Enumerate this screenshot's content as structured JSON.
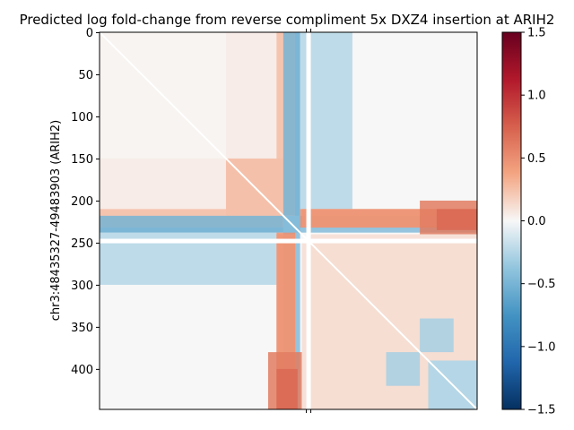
{
  "chart_data": {
    "type": "heatmap",
    "title": "Predicted log fold-change from reverse compliment 5x DXZ4 insertion at ARIH2",
    "xlabel": "",
    "ylabel": "chr3:48435327-49483903 (ARIH2)",
    "grid": false,
    "matrix_size": 448,
    "insertion_bin": 248,
    "y_ticks": [
      0,
      50,
      100,
      150,
      200,
      250,
      300,
      350,
      400
    ],
    "x_ticks": [
      248
    ],
    "colorbar": {
      "colormap": "RdBu_r",
      "vmin": -1.5,
      "vmax": 1.5,
      "ticks": [
        1.5,
        1.0,
        0.5,
        0.0,
        -0.5,
        -1.0,
        -1.5
      ],
      "tick_labels": [
        "1.5",
        "1.0",
        "0.5",
        "0.0",
        "−0.5",
        "−1.0",
        "−1.5"
      ]
    },
    "regions": [
      {
        "rows": [
          0,
          448
        ],
        "cols": [
          218,
          238
        ],
        "value": -0.45
      },
      {
        "rows": [
          0,
          210
        ],
        "cols": [
          150,
          218
        ],
        "value": 0.15
      },
      {
        "rows": [
          150,
          232
        ],
        "cols": [
          0,
          218
        ],
        "value": 0.25
      },
      {
        "rows": [
          218,
          238
        ],
        "cols": [
          0,
          218
        ],
        "value": -0.5
      },
      {
        "rows": [
          238,
          300
        ],
        "cols": [
          0,
          210
        ],
        "value": -0.25
      },
      {
        "rows": [
          210,
          232
        ],
        "cols": [
          238,
          448
        ],
        "value": 0.5
      },
      {
        "rows": [
          240,
          448
        ],
        "cols": [
          210,
          232
        ],
        "value": 0.45
      },
      {
        "rows": [
          380,
          448
        ],
        "cols": [
          200,
          240
        ],
        "value": 0.6
      },
      {
        "rows": [
          210,
          235
        ],
        "cols": [
          400,
          448
        ],
        "value": 0.7
      },
      {
        "rows": [
          240,
          448
        ],
        "cols": [
          250,
          448
        ],
        "value": 0.12
      },
      {
        "rows": [
          340,
          380
        ],
        "cols": [
          380,
          420
        ],
        "value": -0.3
      },
      {
        "rows": [
          390,
          448
        ],
        "cols": [
          390,
          448
        ],
        "value": -0.25
      },
      {
        "rows": [
          0,
          210
        ],
        "cols": [
          0,
          150
        ],
        "value": 0.02
      }
    ]
  }
}
